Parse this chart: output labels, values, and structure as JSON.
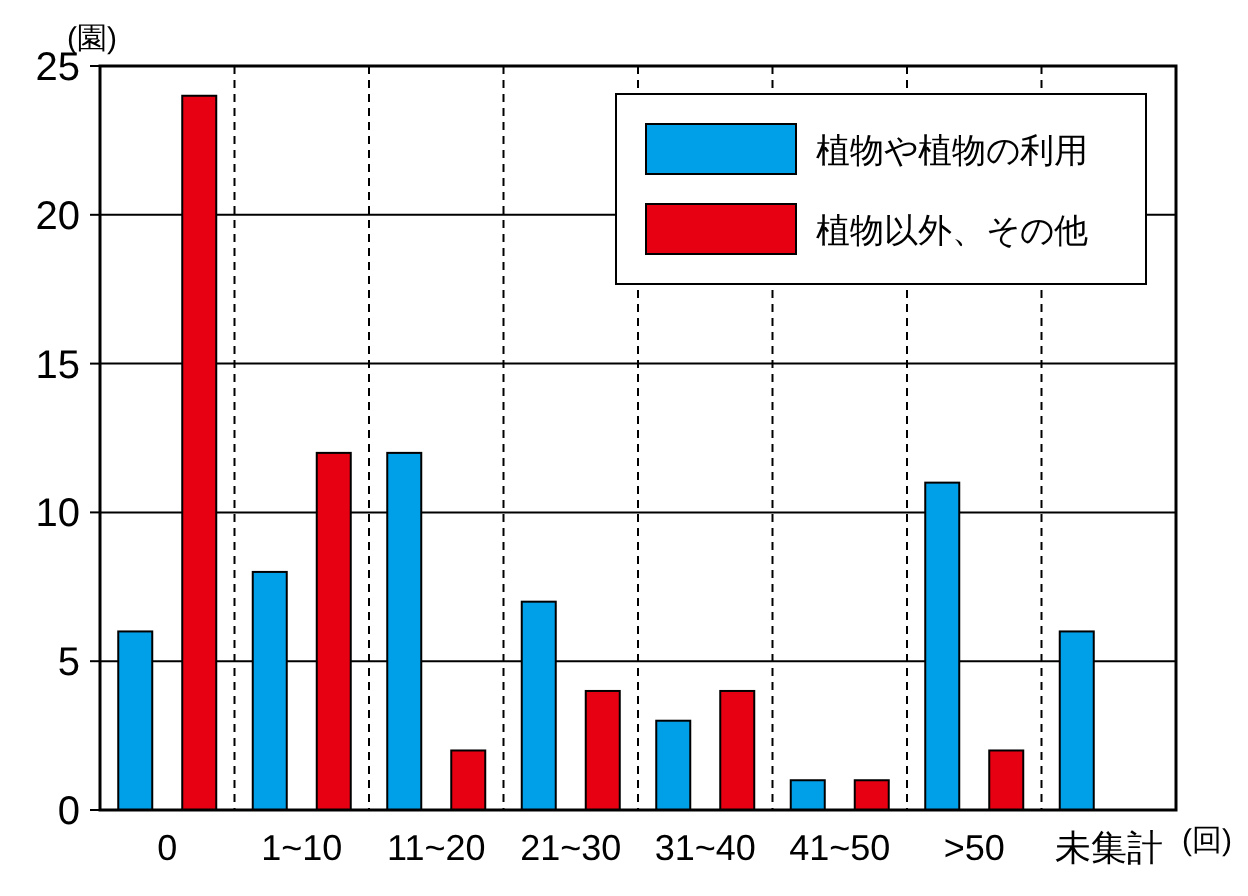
{
  "chart_data": {
    "type": "bar",
    "ylabel": "(園)",
    "xlabel": "(回)",
    "categories": [
      "0",
      "1~10",
      "11~20",
      "21~30",
      "31~40",
      "41~50",
      ">50",
      "未集計"
    ],
    "series": [
      {
        "name": "植物や植物の利用",
        "color": "#00a0e9",
        "values": [
          6,
          8,
          12,
          7,
          3,
          1,
          11,
          6
        ]
      },
      {
        "name": "植物以外、その他",
        "color": "#e60012",
        "values": [
          24,
          12,
          2,
          4,
          4,
          1,
          2,
          null
        ]
      }
    ],
    "ylim": [
      0,
      25
    ],
    "yticks": [
      0,
      5,
      10,
      15,
      20,
      25
    ],
    "grid": true,
    "legend": "top right"
  }
}
